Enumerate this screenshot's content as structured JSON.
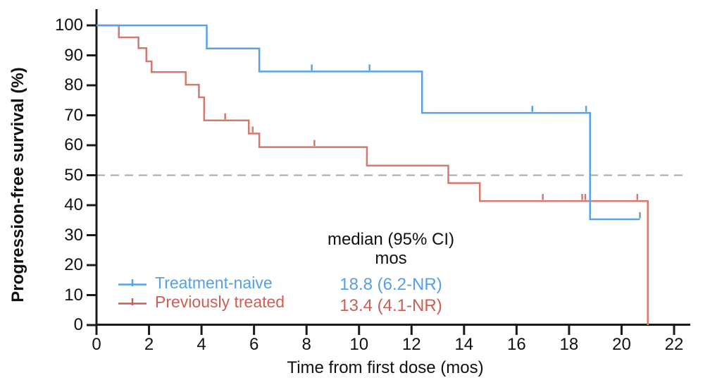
{
  "figure": {
    "y_axis_title": "Progression-free survival (%)",
    "x_axis_title": "Time from first dose (mos)"
  },
  "legend": {
    "items": [
      {
        "label": "Treatment-naive",
        "color": "#55a0e8"
      },
      {
        "label": "Previously treated",
        "color": "#cc5f55"
      }
    ]
  },
  "annotation": {
    "header_line1": "median (95% CI)",
    "header_line2": "mos",
    "rows": [
      {
        "text": "18.8 (6.2-NR)",
        "color": "#55a0e8"
      },
      {
        "text": "13.4 (4.1-NR)",
        "color": "#cc5f55"
      }
    ]
  },
  "chart_data": {
    "type": "line",
    "subtype": "kaplan-meier-step",
    "title": "",
    "xlabel": "Time from first dose (mos)",
    "ylabel": "Progression-free survival (%)",
    "xlim": [
      0,
      22
    ],
    "ylim": [
      0,
      100
    ],
    "x_ticks": [
      0,
      2,
      4,
      6,
      8,
      10,
      12,
      14,
      16,
      18,
      20,
      22
    ],
    "y_ticks": [
      0,
      10,
      20,
      30,
      40,
      50,
      60,
      70,
      80,
      90,
      100
    ],
    "grid": false,
    "legend_position": "lower-left-inside",
    "reference_line": {
      "y": 50,
      "style": "dashed",
      "color": "#a8a8a8"
    },
    "axis_color": "#1a1a1a",
    "series": [
      {
        "name": "Treatment-naive",
        "color": "#5aa2e8",
        "median_mos": "18.8 (6.2-NR)",
        "steps": [
          [
            0,
            100
          ],
          [
            4.2,
            100
          ],
          [
            4.2,
            92.3
          ],
          [
            6.2,
            92.3
          ],
          [
            6.2,
            84.6
          ],
          [
            12.4,
            84.6
          ],
          [
            12.4,
            70.8
          ],
          [
            18.8,
            70.8
          ],
          [
            18.8,
            35.3
          ],
          [
            20.7,
            35.3
          ]
        ],
        "censors": [
          [
            8.2,
            84.6
          ],
          [
            10.4,
            84.6
          ],
          [
            16.6,
            70.8
          ],
          [
            18.65,
            70.8
          ],
          [
            20.7,
            35.3
          ]
        ]
      },
      {
        "name": "Previously treated",
        "color": "#d5786e",
        "median_mos": "13.4 (4.1-NR)",
        "steps": [
          [
            0,
            100
          ],
          [
            0.85,
            100
          ],
          [
            0.85,
            96.0
          ],
          [
            1.6,
            96.0
          ],
          [
            1.6,
            92.4
          ],
          [
            1.9,
            92.4
          ],
          [
            1.9,
            88.0
          ],
          [
            2.1,
            88.0
          ],
          [
            2.1,
            84.4
          ],
          [
            3.4,
            84.4
          ],
          [
            3.4,
            80.2
          ],
          [
            3.9,
            80.2
          ],
          [
            3.9,
            76.0
          ],
          [
            4.1,
            76.0
          ],
          [
            4.1,
            68.3
          ],
          [
            5.8,
            68.3
          ],
          [
            5.8,
            63.9
          ],
          [
            6.2,
            63.9
          ],
          [
            6.2,
            59.4
          ],
          [
            10.3,
            59.4
          ],
          [
            10.3,
            53.2
          ],
          [
            13.4,
            53.2
          ],
          [
            13.4,
            47.4
          ],
          [
            14.6,
            47.4
          ],
          [
            14.6,
            41.4
          ],
          [
            21.0,
            41.4
          ],
          [
            21.0,
            0
          ]
        ],
        "censors": [
          [
            4.9,
            68.3
          ],
          [
            5.95,
            63.9
          ],
          [
            8.3,
            59.4
          ],
          [
            17.0,
            41.4
          ],
          [
            18.5,
            41.4
          ],
          [
            18.62,
            41.4
          ],
          [
            20.6,
            41.4
          ]
        ]
      }
    ]
  }
}
